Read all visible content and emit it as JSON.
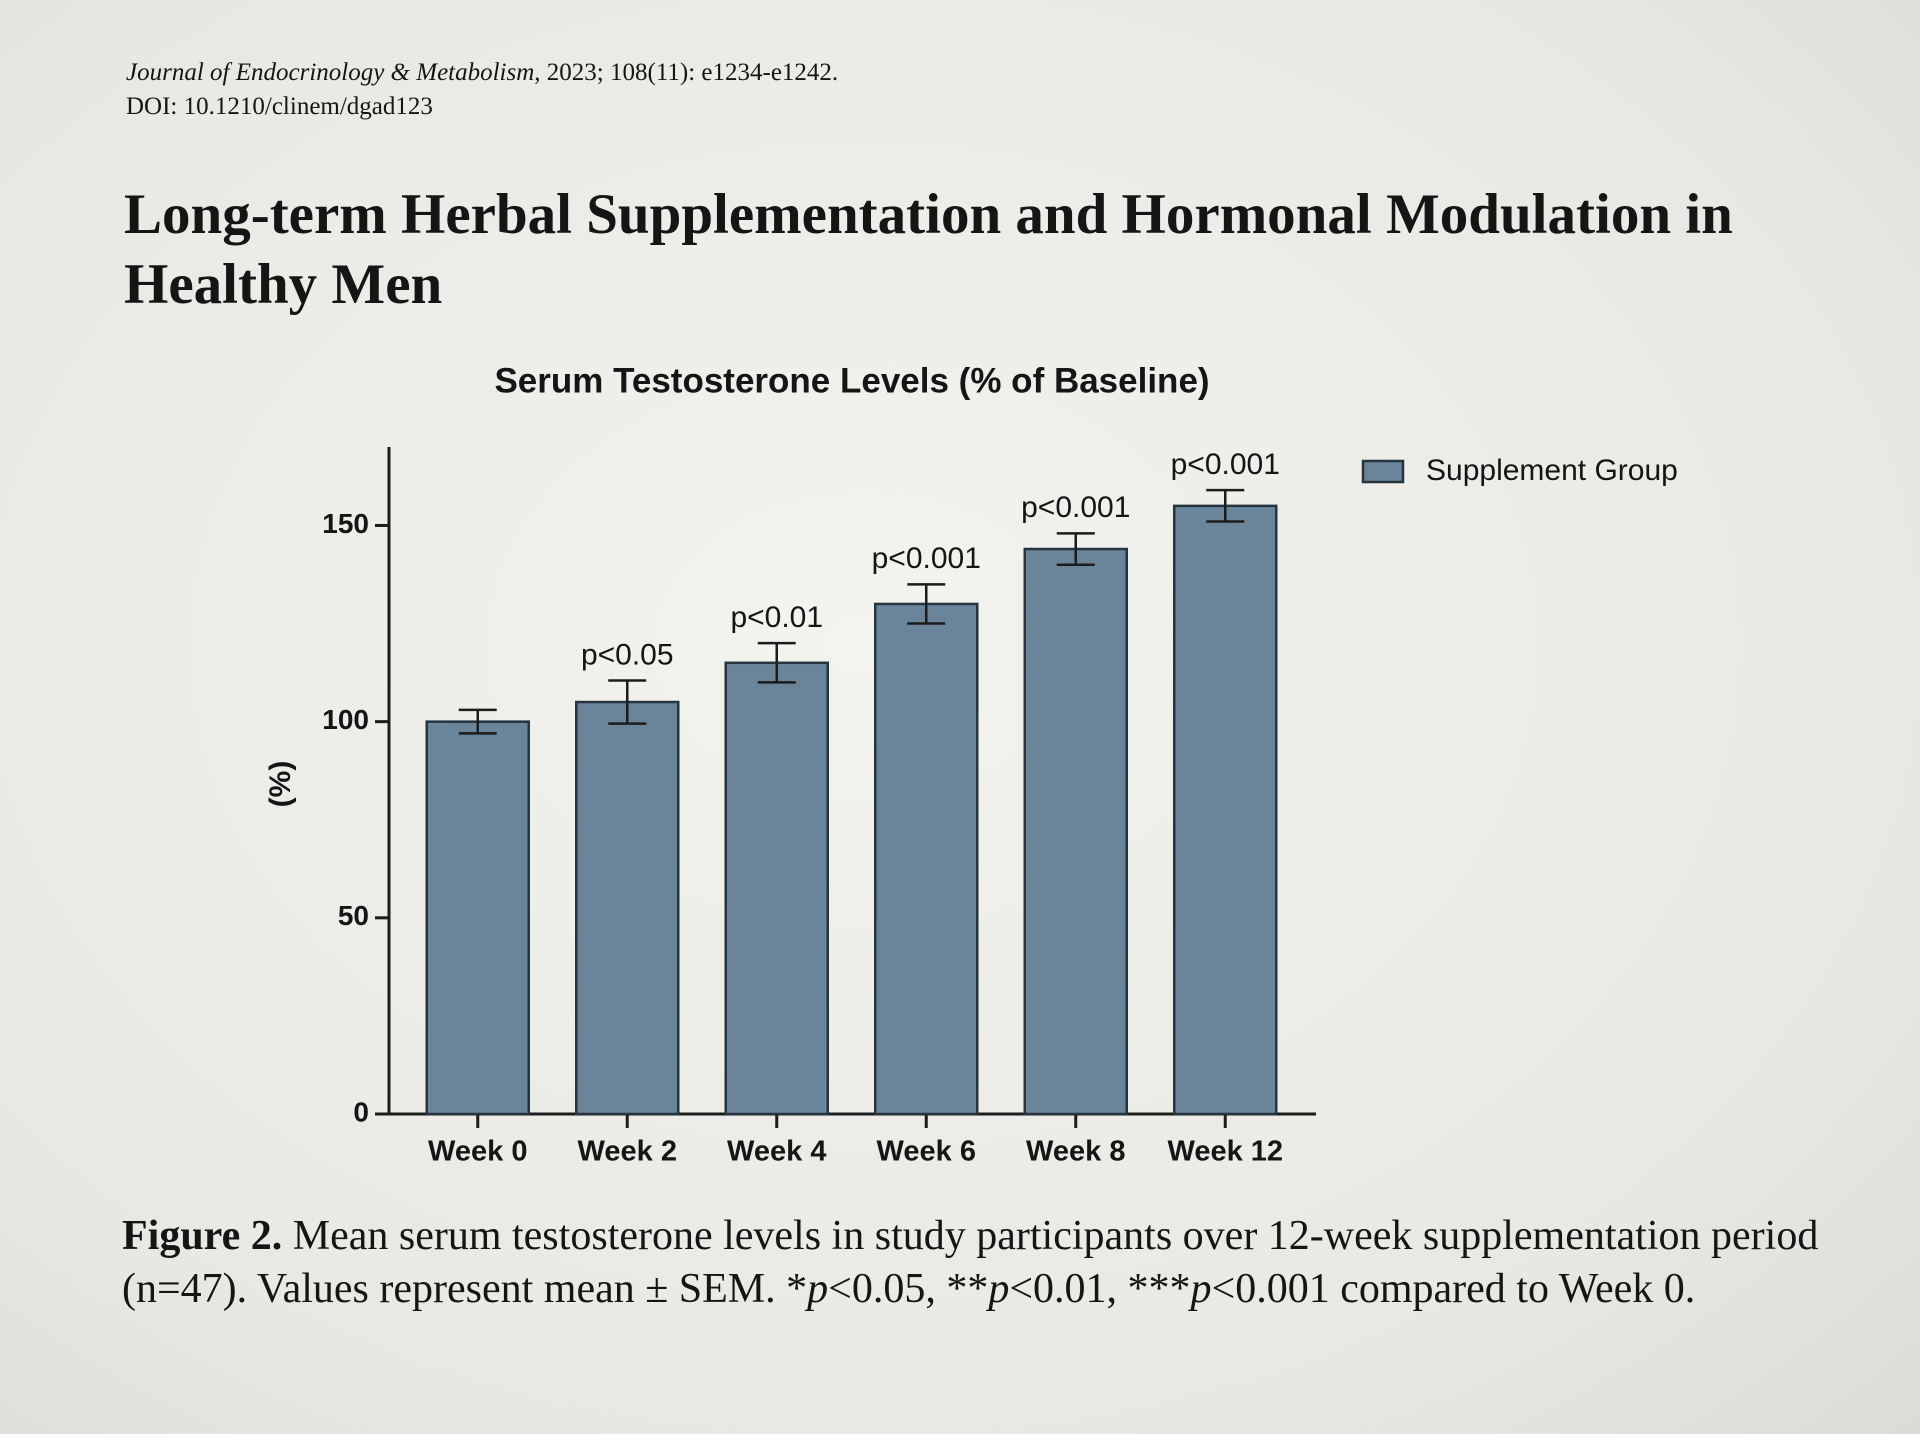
{
  "header": {
    "journal_name": "Journal of Endocrinology & Metabolism",
    "journal_citation": ", 2023; 108(11): e1234-e1242.",
    "doi": "DOI: 10.1210/clinem/dgad123",
    "title": "Long-term Herbal Supplementation and Hormonal Modulation in Healthy Men"
  },
  "chart_data": {
    "type": "bar",
    "title": "Serum Testosterone Levels (% of Baseline)",
    "y_label": "(%)",
    "categories": [
      "Week 0",
      "Week 2",
      "Week 4",
      "Week 6",
      "Week 8",
      "Week 12"
    ],
    "series": [
      {
        "name": "Supplement Group",
        "color": "#6a8599",
        "values": [
          100,
          105,
          115,
          130,
          144,
          155
        ],
        "errors": [
          3,
          5.5,
          5,
          5,
          4,
          4
        ]
      }
    ],
    "annotations": [
      null,
      "p<0.05",
      "p<0.01",
      "p<0.001",
      "p<0.001",
      "p<0.001"
    ],
    "ylim": [
      0,
      170
    ],
    "yticks": [
      0,
      50,
      100,
      150
    ],
    "legend": "top-right"
  },
  "caption": {
    "label": "Figure 2.",
    "segments": [
      {
        "text": " Mean serum testosterone levels in study participants over 12-week supplementation period (n=47). Values represent mean ± SEM. *"
      },
      {
        "text": "p",
        "style": "italic"
      },
      {
        "text": "<0.05, **"
      },
      {
        "text": "p",
        "style": "italic"
      },
      {
        "text": "<0.01, ***"
      },
      {
        "text": "p",
        "style": "italic"
      },
      {
        "text": "<0.001 compared to Week 0."
      }
    ]
  }
}
